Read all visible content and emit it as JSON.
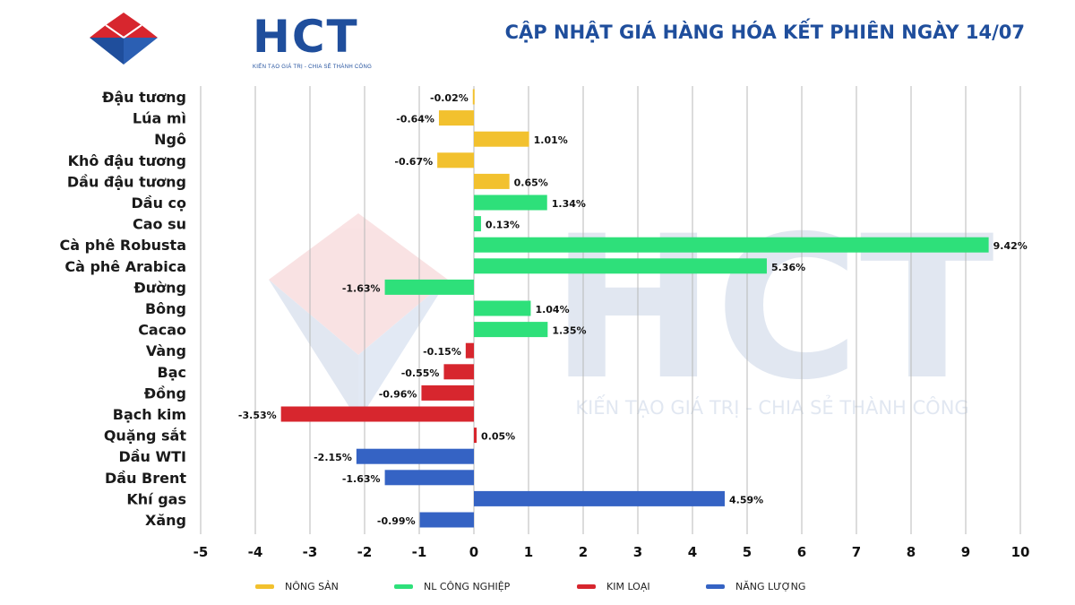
{
  "brand": {
    "logo_text": "HCT",
    "tagline": "KIẾN TẠO GIÁ TRỊ - CHIA SẺ THÀNH CÔNG",
    "color": "#1f4e9c",
    "accent": "#d7262e"
  },
  "watermark": {
    "text": "HCT",
    "tagline": "KIẾN TẠO GIÁ TRỊ - CHIA SẺ THÀNH CÔNG"
  },
  "header": {
    "title": "CẬP NHẬT GIÁ HÀNG HÓA KẾT PHIÊN NGÀY 14/07"
  },
  "chart_data": {
    "type": "bar",
    "orientation": "horizontal",
    "title": "CẬP NHẬT GIÁ HÀNG HÓA KẾT PHIÊN NGÀY 14/07",
    "xlabel": "",
    "ylabel": "",
    "xlim": [
      -5,
      10
    ],
    "xticks": [
      "-5",
      "-4",
      "-3",
      "-2",
      "-1",
      "0",
      "1",
      "2",
      "3",
      "4",
      "5",
      "6",
      "7",
      "8",
      "9",
      "10"
    ],
    "grid": "vertical",
    "legend_position": "bottom",
    "value_suffix": "%",
    "groups": [
      {
        "name": "NÔNG SẢN",
        "color": "#f2c12e"
      },
      {
        "name": "NL CÔNG NGHIỆP",
        "color": "#2ee07a"
      },
      {
        "name": "KIM LOẠI",
        "color": "#d7262e"
      },
      {
        "name": "NĂNG LƯỢNG",
        "color": "#3563c4"
      }
    ],
    "categories": [
      {
        "label": "Đậu tương",
        "value": -0.02,
        "text": "-0.02%",
        "group": 0
      },
      {
        "label": "Lúa mì",
        "value": -0.64,
        "text": "-0.64%",
        "group": 0
      },
      {
        "label": "Ngô",
        "value": 1.01,
        "text": "1.01%",
        "group": 0
      },
      {
        "label": "Khô đậu tương",
        "value": -0.67,
        "text": "-0.67%",
        "group": 0
      },
      {
        "label": "Dầu đậu tương",
        "value": 0.65,
        "text": "0.65%",
        "group": 0
      },
      {
        "label": "Dầu cọ",
        "value": 1.34,
        "text": "1.34%",
        "group": 1
      },
      {
        "label": "Cao su",
        "value": 0.13,
        "text": "0.13%",
        "group": 1
      },
      {
        "label": "Cà phê Robusta",
        "value": 9.42,
        "text": "9.42%",
        "group": 1
      },
      {
        "label": "Cà phê Arabica",
        "value": 5.36,
        "text": "5.36%",
        "group": 1
      },
      {
        "label": "Đường",
        "value": -1.63,
        "text": "-1.63%",
        "group": 1
      },
      {
        "label": "Bông",
        "value": 1.04,
        "text": "1.04%",
        "group": 1
      },
      {
        "label": "Cacao",
        "value": 1.35,
        "text": "1.35%",
        "group": 1
      },
      {
        "label": "Vàng",
        "value": -0.15,
        "text": "-0.15%",
        "group": 2
      },
      {
        "label": "Bạc",
        "value": -0.55,
        "text": "-0.55%",
        "group": 2
      },
      {
        "label": "Đồng",
        "value": -0.96,
        "text": "-0.96%",
        "group": 2
      },
      {
        "label": "Bạch kim",
        "value": -3.53,
        "text": "-3.53%",
        "group": 2
      },
      {
        "label": "Quặng sắt",
        "value": 0.05,
        "text": "0.05%",
        "group": 2
      },
      {
        "label": "Dầu WTI",
        "value": -2.15,
        "text": "-2.15%",
        "group": 3
      },
      {
        "label": "Dầu Brent",
        "value": -1.63,
        "text": "-1.63%",
        "group": 3
      },
      {
        "label": "Khí gas",
        "value": 4.59,
        "text": "4.59%",
        "group": 3
      },
      {
        "label": "Xăng",
        "value": -0.99,
        "text": "-0.99%",
        "group": 3
      }
    ]
  }
}
